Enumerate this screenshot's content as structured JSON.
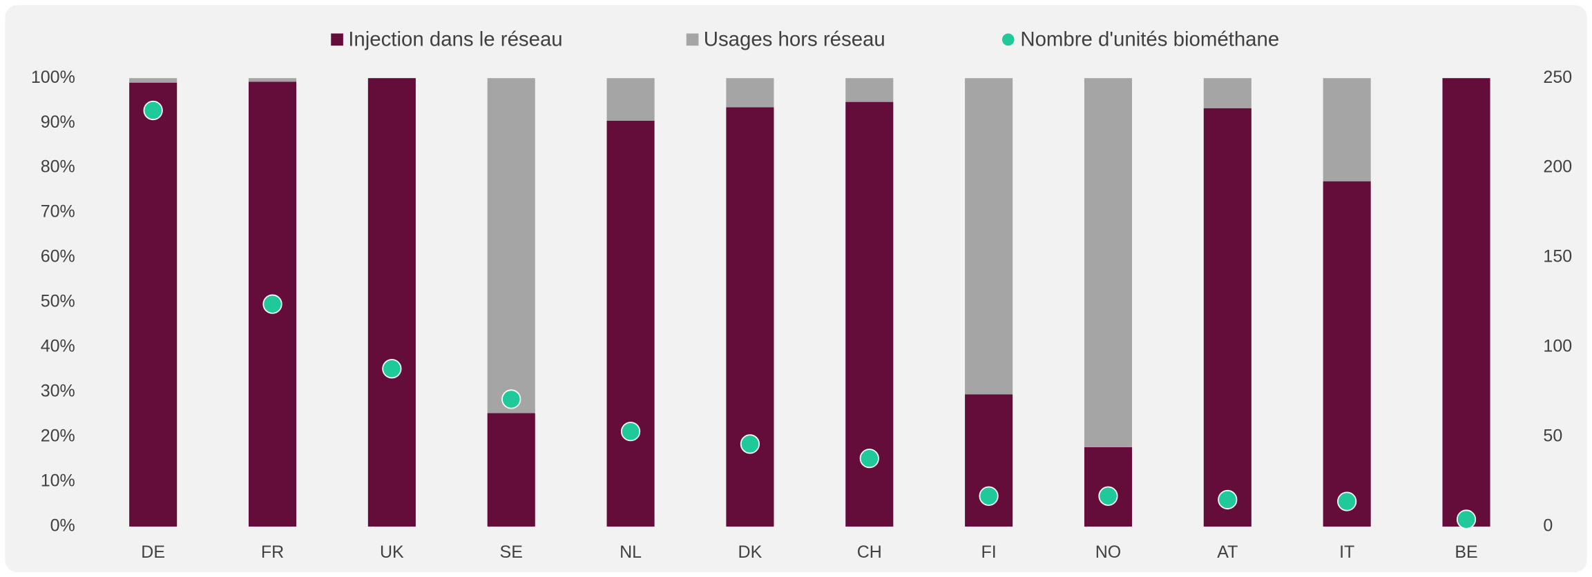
{
  "chart_data": {
    "type": "bar",
    "stacked": true,
    "grid": false,
    "legend": "top",
    "categories": [
      "DE",
      "FR",
      "UK",
      "SE",
      "NL",
      "DK",
      "CH",
      "FI",
      "NO",
      "AT",
      "IT",
      "BE"
    ],
    "series": [
      {
        "name": "Injection dans le réseau",
        "color": "#650d3a",
        "values": [
          99,
          99.2,
          100,
          25.3,
          90.5,
          93.5,
          94.7,
          29.5,
          17.7,
          93.3,
          77,
          100
        ]
      },
      {
        "name": "Usages hors réseau",
        "color": "#a5a5a5",
        "values": [
          1,
          0.8,
          0,
          74.7,
          9.5,
          6.5,
          5.3,
          70.5,
          82.3,
          6.7,
          23,
          0
        ]
      },
      {
        "name": "Nombre d'unités biométhane",
        "color": "#1fc99a",
        "type": "scatter",
        "axis": "y2",
        "values": [
          232,
          124,
          88,
          71,
          53,
          46,
          38,
          17,
          17,
          15,
          14,
          4
        ]
      }
    ],
    "ylim": [
      0,
      100
    ],
    "yticks": [
      {
        "value": 0,
        "label": "0%"
      },
      {
        "value": 10,
        "label": "10%"
      },
      {
        "value": 20,
        "label": "20%"
      },
      {
        "value": 30,
        "label": "30%"
      },
      {
        "value": 40,
        "label": "40%"
      },
      {
        "value": 50,
        "label": "50%"
      },
      {
        "value": 60,
        "label": "60%"
      },
      {
        "value": 70,
        "label": "70%"
      },
      {
        "value": 80,
        "label": "80%"
      },
      {
        "value": 90,
        "label": "90%"
      },
      {
        "value": 100,
        "label": "100%"
      }
    ],
    "y2lim": [
      0,
      250
    ],
    "y2ticks": [
      0,
      50,
      100,
      150,
      200,
      250
    ]
  }
}
